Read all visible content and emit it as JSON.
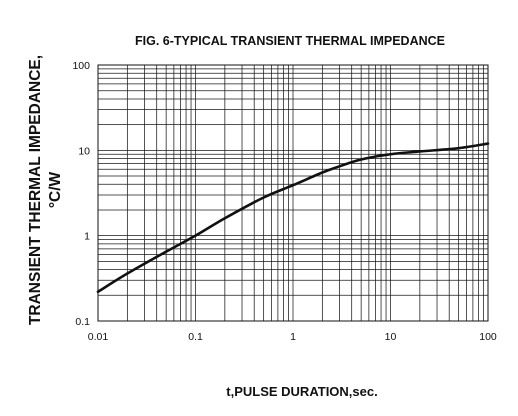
{
  "chart_data": {
    "type": "line",
    "title": "FIG. 6-TYPICAL TRANSIENT THERMAL IMPEDANCE",
    "xlabel": "t,PULSE DURATION,sec.",
    "ylabel_line1": "TRANSIENT THERMAL IMPEDANCE,",
    "ylabel_line2": "°C/W",
    "x_scale": "log",
    "y_scale": "log",
    "xlim": [
      0.01,
      100
    ],
    "ylim": [
      0.1,
      100
    ],
    "grid": true,
    "x_ticks": [
      {
        "value": 0.01,
        "label": "0.01"
      },
      {
        "value": 0.1,
        "label": "0.1"
      },
      {
        "value": 1,
        "label": "1"
      },
      {
        "value": 10,
        "label": "10"
      },
      {
        "value": 100,
        "label": "100"
      }
    ],
    "y_ticks": [
      {
        "value": 0.1,
        "label": "0.1"
      },
      {
        "value": 1,
        "label": "1"
      },
      {
        "value": 10,
        "label": "10"
      },
      {
        "value": 100,
        "label": "100"
      }
    ],
    "series": [
      {
        "x": [
          0.01,
          0.02,
          0.05,
          0.1,
          0.2,
          0.5,
          1,
          2,
          3,
          5,
          10,
          20,
          50,
          100
        ],
        "y": [
          0.22,
          0.36,
          0.65,
          1.0,
          1.6,
          2.8,
          3.9,
          5.5,
          6.5,
          7.8,
          9.0,
          9.7,
          10.6,
          12.0
        ]
      }
    ]
  }
}
